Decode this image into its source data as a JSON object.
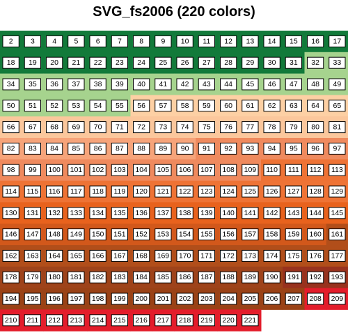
{
  "title": "SVG_fs2006 (220 colors)",
  "labels": [
    2,
    3,
    4,
    5,
    6,
    7,
    8,
    9,
    10,
    11,
    12,
    13,
    14,
    15,
    16,
    17,
    18,
    19,
    20,
    21,
    22,
    23,
    24,
    25,
    26,
    27,
    28,
    29,
    30,
    31,
    32,
    33,
    34,
    35,
    36,
    37,
    38,
    39,
    40,
    41,
    42,
    43,
    44,
    45,
    46,
    47,
    48,
    49,
    50,
    51,
    52,
    53,
    54,
    55,
    56,
    57,
    58,
    59,
    60,
    61,
    62,
    63,
    64,
    65,
    66,
    67,
    68,
    69,
    70,
    71,
    72,
    73,
    74,
    75,
    76,
    77,
    78,
    79,
    80,
    81,
    82,
    83,
    84,
    85,
    86,
    87,
    88,
    89,
    90,
    91,
    92,
    93,
    94,
    95,
    96,
    97,
    98,
    99,
    100,
    101,
    102,
    103,
    104,
    105,
    106,
    107,
    108,
    109,
    110,
    111,
    112,
    113,
    114,
    115,
    116,
    117,
    118,
    119,
    120,
    121,
    122,
    123,
    124,
    125,
    126,
    127,
    128,
    129,
    130,
    131,
    132,
    133,
    134,
    135,
    136,
    137,
    138,
    139,
    140,
    141,
    142,
    143,
    144,
    145,
    146,
    147,
    148,
    149,
    150,
    151,
    152,
    153,
    154,
    155,
    156,
    157,
    158,
    159,
    160,
    161,
    162,
    163,
    164,
    165,
    166,
    167,
    168,
    169,
    170,
    171,
    172,
    173,
    174,
    175,
    176,
    177,
    178,
    179,
    180,
    181,
    182,
    183,
    184,
    185,
    186,
    187,
    188,
    189,
    190,
    191,
    192,
    193,
    194,
    195,
    196,
    197,
    198,
    199,
    200,
    201,
    202,
    203,
    204,
    205,
    206,
    207,
    208,
    209,
    210,
    211,
    212,
    213,
    214,
    215,
    216,
    217,
    218,
    219,
    220,
    221
  ],
  "colors": [
    "#127a3a",
    "#127a3a",
    "#127a3a",
    "#127a3a",
    "#127a3a",
    "#127a3a",
    "#127a3a",
    "#127a3a",
    "#127a3a",
    "#127a3a",
    "#127a3a",
    "#127a3a",
    "#127a3a",
    "#127a3a",
    "#127a3a",
    "#127a3a",
    "#127a3a",
    "#127a3a",
    "#127a3a",
    "#127a3a",
    "#127a3a",
    "#127a3a",
    "#127a3a",
    "#127a3a",
    "#127a3a",
    "#127a3a",
    "#127a3a",
    "#127a3a",
    "#127a3a",
    "#127a3a",
    "#a6d38e",
    "#a6d38e",
    "#a6d38e",
    "#a6d38e",
    "#a6d38e",
    "#a6d38e",
    "#a6d38e",
    "#a6d38e",
    "#a6d38e",
    "#a6d38e",
    "#a6d38e",
    "#a6d38e",
    "#a6d38e",
    "#a6d38e",
    "#a6d38e",
    "#a6d38e",
    "#a6d38e",
    "#a6d38e",
    "#a6d38e",
    "#a6d38e",
    "#a6d38e",
    "#a6d38e",
    "#a6d38e",
    "#a6d38e",
    "#fdd0a4",
    "#fdd0a4",
    "#fdd0a4",
    "#fdd0a4",
    "#fdd0a4",
    "#fdd0a4",
    "#fdd0a4",
    "#fdd0a4",
    "#fdd0a4",
    "#fdd0a4",
    "#fbc79c",
    "#fbc79c",
    "#fbc79c",
    "#fbc79c",
    "#fbc79c",
    "#fbc79c",
    "#fbc79c",
    "#fbc79c",
    "#fbc79c",
    "#fbc79c",
    "#fbc79c",
    "#fbc79c",
    "#fbc79c",
    "#fbc79c",
    "#fbc79c",
    "#fbc79c",
    "#f6a47a",
    "#f6a47a",
    "#f6a47a",
    "#f6a47a",
    "#f6a47a",
    "#f6a47a",
    "#f6a47a",
    "#f6a47a",
    "#f6a47a",
    "#ef8a5e",
    "#ef8a5e",
    "#ef8a5e",
    "#ef8a5e",
    "#ef8a5e",
    "#ef8a5e",
    "#ef8a5e",
    "#ef8a5e",
    "#ef8a5e",
    "#ef8a5e",
    "#ef8a5e",
    "#ef8a5e",
    "#ef8a5e",
    "#ef8a5e",
    "#ef8a5e",
    "#ef8a5e",
    "#ef8a5e",
    "#ef8a5e",
    "#ef8a5e",
    "#ee7335",
    "#ee7335",
    "#ee7335",
    "#ee7335",
    "#ee7335",
    "#ee7335",
    "#ee7335",
    "#ee7335",
    "#ee7335",
    "#ee7335",
    "#ee7335",
    "#ee7335",
    "#ee7335",
    "#ee7335",
    "#ee7335",
    "#ee7335",
    "#ee7335",
    "#ee7335",
    "#ee7335",
    "#ee7335",
    "#e8621d",
    "#e8621d",
    "#e8621d",
    "#e8621d",
    "#e8621d",
    "#e8621d",
    "#e8621d",
    "#e8621d",
    "#e8621d",
    "#e8621d",
    "#e8621d",
    "#e8621d",
    "#e8621d",
    "#e8621d",
    "#e8621d",
    "#e8621d",
    "#d2581b",
    "#d2581b",
    "#d2581b",
    "#d2581b",
    "#d2581b",
    "#d2581b",
    "#d2581b",
    "#d2581b",
    "#d2581b",
    "#d2581b",
    "#d2581b",
    "#d2581b",
    "#d2581b",
    "#d2581b",
    "#d2581b",
    "#b14e1a",
    "#b14e1a",
    "#b14e1a",
    "#b14e1a",
    "#b14e1a",
    "#b14e1a",
    "#b14e1a",
    "#b14e1a",
    "#b14e1a",
    "#b14e1a",
    "#b14e1a",
    "#b14e1a",
    "#b14e1a",
    "#b14e1a",
    "#b14e1a",
    "#b14e1a",
    "#b14e1a",
    "#9e431a",
    "#9e431a",
    "#9e431a",
    "#9e431a",
    "#9e431a",
    "#9e431a",
    "#9e431a",
    "#9e431a",
    "#9e431a",
    "#9e431a",
    "#9e431a",
    "#9e431a",
    "#9e431a",
    "#98321e",
    "#98321e",
    "#98321e",
    "#9a4216",
    "#9a4216",
    "#9a4216",
    "#9a4216",
    "#9a4216",
    "#9a4216",
    "#9a4216",
    "#9a4216",
    "#9a4216",
    "#9a4216",
    "#9a4216",
    "#9a4216",
    "#9a4216",
    "#9a4216",
    "#e31d2b",
    "#e31d2b",
    "#e31d2b",
    "#e31d2b",
    "#e31d2b",
    "#e31d2b",
    "#e31d2b",
    "#e31d2b",
    "#e31d2b",
    "#e31d2b",
    "#e31d2b",
    "#e31d2b",
    "#e31d2b",
    "#e31d2b"
  ]
}
